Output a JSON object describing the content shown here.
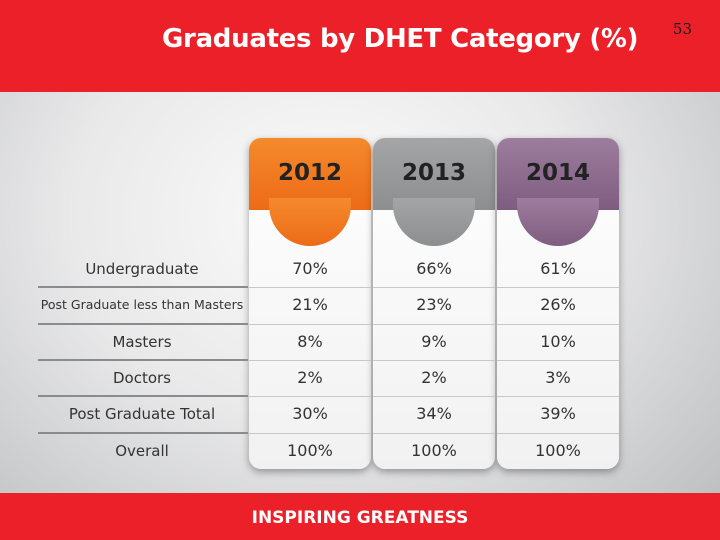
{
  "header": {
    "title": "Graduates by DHET Category (%)",
    "page_number": "53"
  },
  "table": {
    "columns": [
      "2012",
      "2013",
      "2014"
    ],
    "rows": [
      {
        "label": "Undergraduate",
        "values": [
          "70%",
          "66%",
          "61%"
        ]
      },
      {
        "label": "Post Graduate less than Masters",
        "values": [
          "21%",
          "23%",
          "26%"
        ]
      },
      {
        "label": "Masters",
        "values": [
          "8%",
          "9%",
          "10%"
        ]
      },
      {
        "label": "Doctors",
        "values": [
          "2%",
          "2%",
          "3%"
        ]
      },
      {
        "label": "Post Graduate Total",
        "values": [
          "30%",
          "34%",
          "39%"
        ]
      },
      {
        "label": "Overall",
        "values": [
          "100%",
          "100%",
          "100%"
        ]
      }
    ]
  },
  "colors": {
    "header_red": "#ec2029",
    "col_2012": "#ec6b16",
    "col_2013": "#8d8e90",
    "col_2014": "#7e5d80"
  },
  "footer": {
    "tagline": "INSPIRING GREATNESS"
  }
}
